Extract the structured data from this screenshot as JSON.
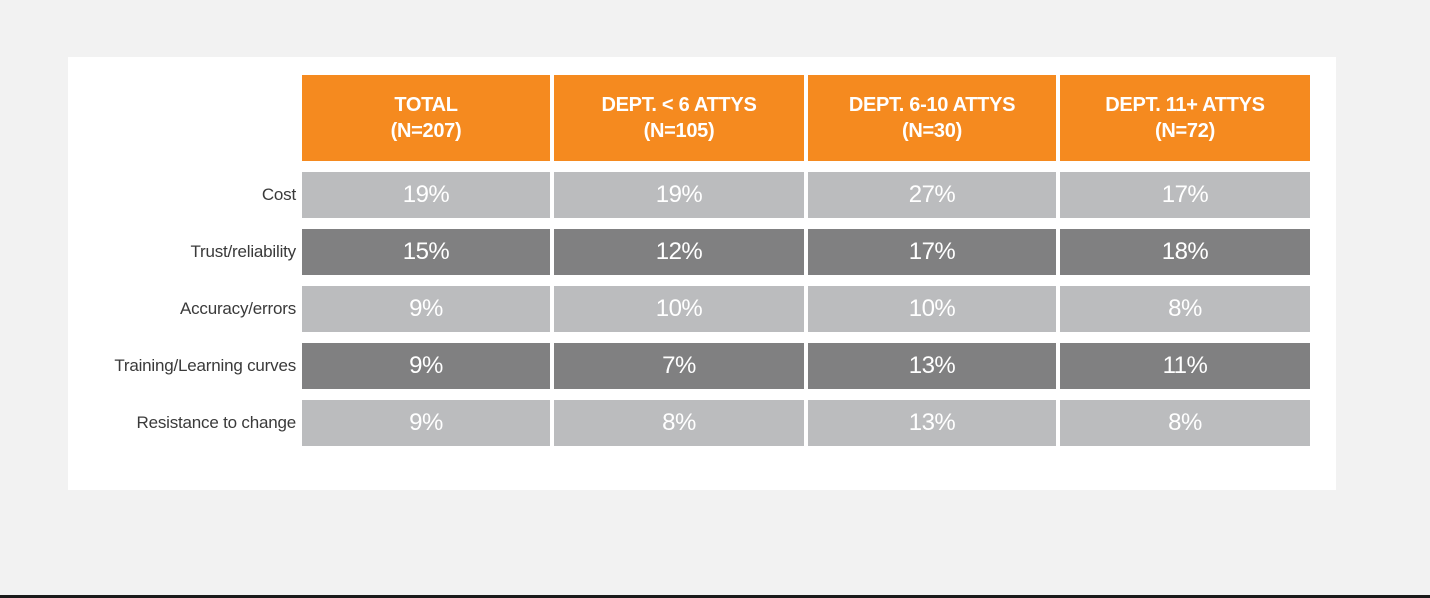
{
  "chart_data": {
    "type": "table",
    "columns": [
      {
        "title": "TOTAL",
        "n": "(N=207)"
      },
      {
        "title": "DEPT. < 6 ATTYS",
        "n": "(N=105)"
      },
      {
        "title": "DEPT. 6-10 ATTYS",
        "n": "(N=30)"
      },
      {
        "title": "DEPT. 11+ ATTYS",
        "n": "(N=72)"
      }
    ],
    "rows": [
      {
        "label": "Cost",
        "values": [
          "19%",
          "19%",
          "27%",
          "17%"
        ]
      },
      {
        "label": "Trust/reliability",
        "values": [
          "15%",
          "12%",
          "17%",
          "18%"
        ]
      },
      {
        "label": "Accuracy/errors",
        "values": [
          "9%",
          "10%",
          "10%",
          "8%"
        ]
      },
      {
        "label": "Training/Learning curves",
        "values": [
          "9%",
          "7%",
          "13%",
          "11%"
        ]
      },
      {
        "label": "Resistance to change",
        "values": [
          "9%",
          "8%",
          "13%",
          "8%"
        ]
      }
    ],
    "colors": {
      "header": "#f58a1f",
      "row_light": "#bbbcbe",
      "row_dark": "#808081"
    }
  }
}
